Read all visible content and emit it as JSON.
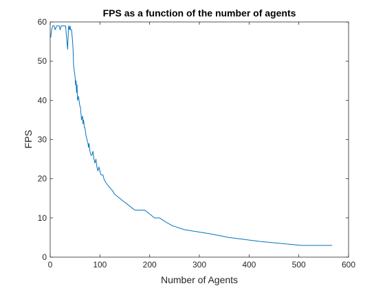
{
  "chart_data": {
    "type": "line",
    "title": "FPS as a function of the number of agents",
    "xlabel": "Number of Agents",
    "ylabel": "FPS",
    "xlim": [
      0,
      600
    ],
    "ylim": [
      0,
      60
    ],
    "xticks": [
      0,
      100,
      200,
      300,
      400,
      500,
      600
    ],
    "yticks": [
      0,
      10,
      20,
      30,
      40,
      50,
      60
    ],
    "grid": false,
    "line_color": "#0072BD",
    "series": [
      {
        "x": [
          1,
          3,
          5,
          8,
          10,
          13,
          15,
          18,
          20,
          22,
          25,
          28,
          31,
          33,
          35,
          36,
          37,
          39,
          40,
          41,
          43,
          45,
          46,
          47,
          48,
          49,
          50,
          51,
          52,
          53,
          54,
          55,
          57,
          59,
          61,
          63,
          65,
          66,
          67,
          69,
          70,
          72,
          74,
          76,
          77,
          78,
          80,
          82,
          84,
          86,
          88,
          90,
          92,
          94,
          96,
          98,
          100,
          102,
          104,
          106,
          108,
          112,
          118,
          125,
          130,
          140,
          150,
          160,
          170,
          180,
          190,
          200,
          210,
          220,
          232,
          246,
          270,
          320,
          360,
          422,
          505,
          567
        ],
        "y": [
          56,
          58,
          59,
          59,
          58,
          59,
          59,
          59,
          58,
          59,
          59,
          59,
          59,
          56,
          53,
          56,
          59,
          58,
          59,
          58,
          58,
          55,
          53,
          49,
          48,
          47,
          46,
          44,
          45,
          42,
          44,
          40,
          41,
          39,
          38,
          35,
          36,
          34,
          35,
          33,
          33,
          31,
          30,
          29,
          28,
          29,
          27,
          26,
          26,
          27,
          25,
          24,
          25,
          23,
          22,
          23,
          22,
          21,
          21,
          21,
          20,
          19,
          18,
          17,
          16,
          15,
          14,
          13,
          12,
          12,
          12,
          11,
          10,
          10,
          9,
          8,
          7,
          6,
          5,
          4,
          3,
          3
        ]
      }
    ]
  }
}
